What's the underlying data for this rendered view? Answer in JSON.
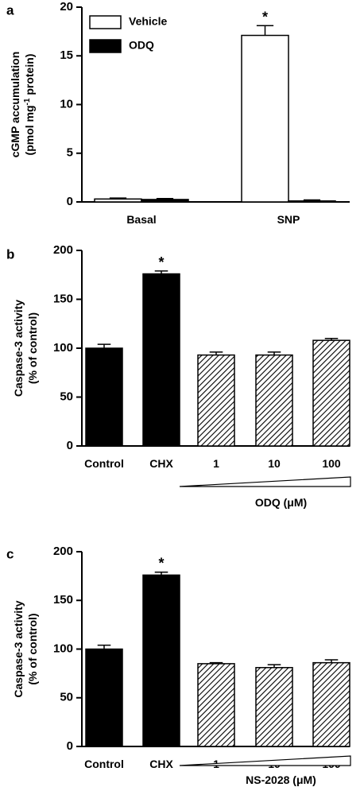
{
  "chart_data": [
    {
      "panel": "a",
      "type": "bar",
      "ylabel_line1": "cGMP accumulation",
      "ylabel_line2_pre": "(pmol mg",
      "ylabel_line2_sup": "-1",
      "ylabel_line2_post": " protein)",
      "ylim": [
        0,
        20
      ],
      "yticks": [
        "0",
        "5",
        "10",
        "15",
        "20"
      ],
      "categories": [
        "Basal",
        "SNP"
      ],
      "legend_placement": "top-left",
      "series": [
        {
          "name": "Vehicle",
          "fill": "white",
          "values": [
            0.3,
            17.1
          ],
          "errors": [
            0.1,
            1.0
          ]
        },
        {
          "name": "ODQ",
          "fill": "black",
          "values": [
            0.25,
            0.1
          ],
          "errors": [
            0.1,
            0.1
          ]
        }
      ],
      "annotations": [
        {
          "text": "*",
          "category": 1,
          "series": 0
        }
      ]
    },
    {
      "panel": "b",
      "type": "bar",
      "ylabel_line1": "Caspase-3 activity",
      "ylabel_line2": "(% of control)",
      "ylim": [
        0,
        200
      ],
      "yticks": [
        "0",
        "50",
        "100",
        "150",
        "200"
      ],
      "categories": [
        "Control",
        "CHX",
        "1",
        "10",
        "100"
      ],
      "values": [
        100,
        176,
        93,
        93,
        108
      ],
      "errors": [
        4,
        3,
        3,
        3,
        2
      ],
      "fills": [
        "black",
        "black",
        "hatch",
        "hatch",
        "hatch"
      ],
      "group_label": "ODQ (μM)",
      "annotations": [
        {
          "text": "*",
          "category": 1
        }
      ]
    },
    {
      "panel": "c",
      "type": "bar",
      "ylabel_line1": "Caspase-3 activity",
      "ylabel_line2": "(% of control)",
      "ylim": [
        0,
        200
      ],
      "yticks": [
        "0",
        "50",
        "100",
        "150",
        "200"
      ],
      "categories": [
        "Control",
        "CHX",
        "1",
        "10",
        "100"
      ],
      "values": [
        100,
        176,
        85,
        81,
        86
      ],
      "errors": [
        4,
        3,
        1,
        3,
        3
      ],
      "fills": [
        "black",
        "black",
        "hatch",
        "hatch",
        "hatch"
      ],
      "group_label": "NS-2028 (μM)",
      "annotations": [
        {
          "text": "*",
          "category": 1
        }
      ]
    }
  ]
}
